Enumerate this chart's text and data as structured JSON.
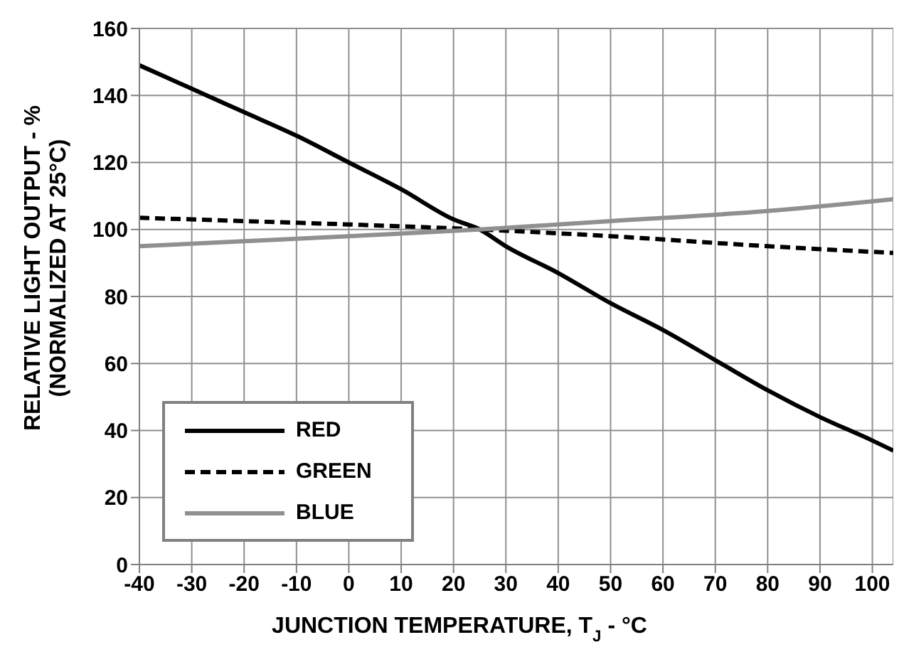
{
  "chart_data": {
    "type": "line",
    "xlabel": "JUNCTION TEMPERATURE, T$_{J}$ - °C",
    "ylabel": "RELATIVE LIGHT OUTPUT - %\n(NORMALIZED AT 25°C)",
    "xlim": [
      -40,
      104
    ],
    "xticks": [
      -40,
      -30,
      -20,
      -10,
      0,
      10,
      20,
      30,
      40,
      50,
      60,
      70,
      80,
      90,
      100
    ],
    "ylim": [
      0,
      160
    ],
    "yticks": [
      0,
      20,
      40,
      60,
      80,
      100,
      120,
      140,
      160
    ],
    "grid": true,
    "legend": "bottom left",
    "marker": "none",
    "series": [
      {
        "name": "RED",
        "color": "#000000",
        "line_style": "solid",
        "x": [
          -40,
          -30,
          -20,
          -10,
          0,
          10,
          20,
          25,
          30,
          40,
          50,
          60,
          70,
          80,
          90,
          100,
          104
        ],
        "values": [
          149,
          142,
          135,
          128,
          120,
          112,
          103,
          100,
          95,
          87,
          78,
          70,
          61,
          52,
          44,
          37,
          34
        ]
      },
      {
        "name": "GREEN",
        "color": "#000000",
        "line_style": "dashed",
        "x": [
          -40,
          -20,
          0,
          25,
          50,
          80,
          104
        ],
        "values": [
          103.5,
          102.5,
          101.5,
          100,
          98,
          95,
          93
        ]
      },
      {
        "name": "BLUE",
        "color": "#909090",
        "line_style": "solid",
        "x": [
          -40,
          -20,
          0,
          25,
          50,
          80,
          104
        ],
        "values": [
          95,
          96.5,
          98,
          100,
          102.5,
          105.5,
          109
        ]
      }
    ]
  }
}
